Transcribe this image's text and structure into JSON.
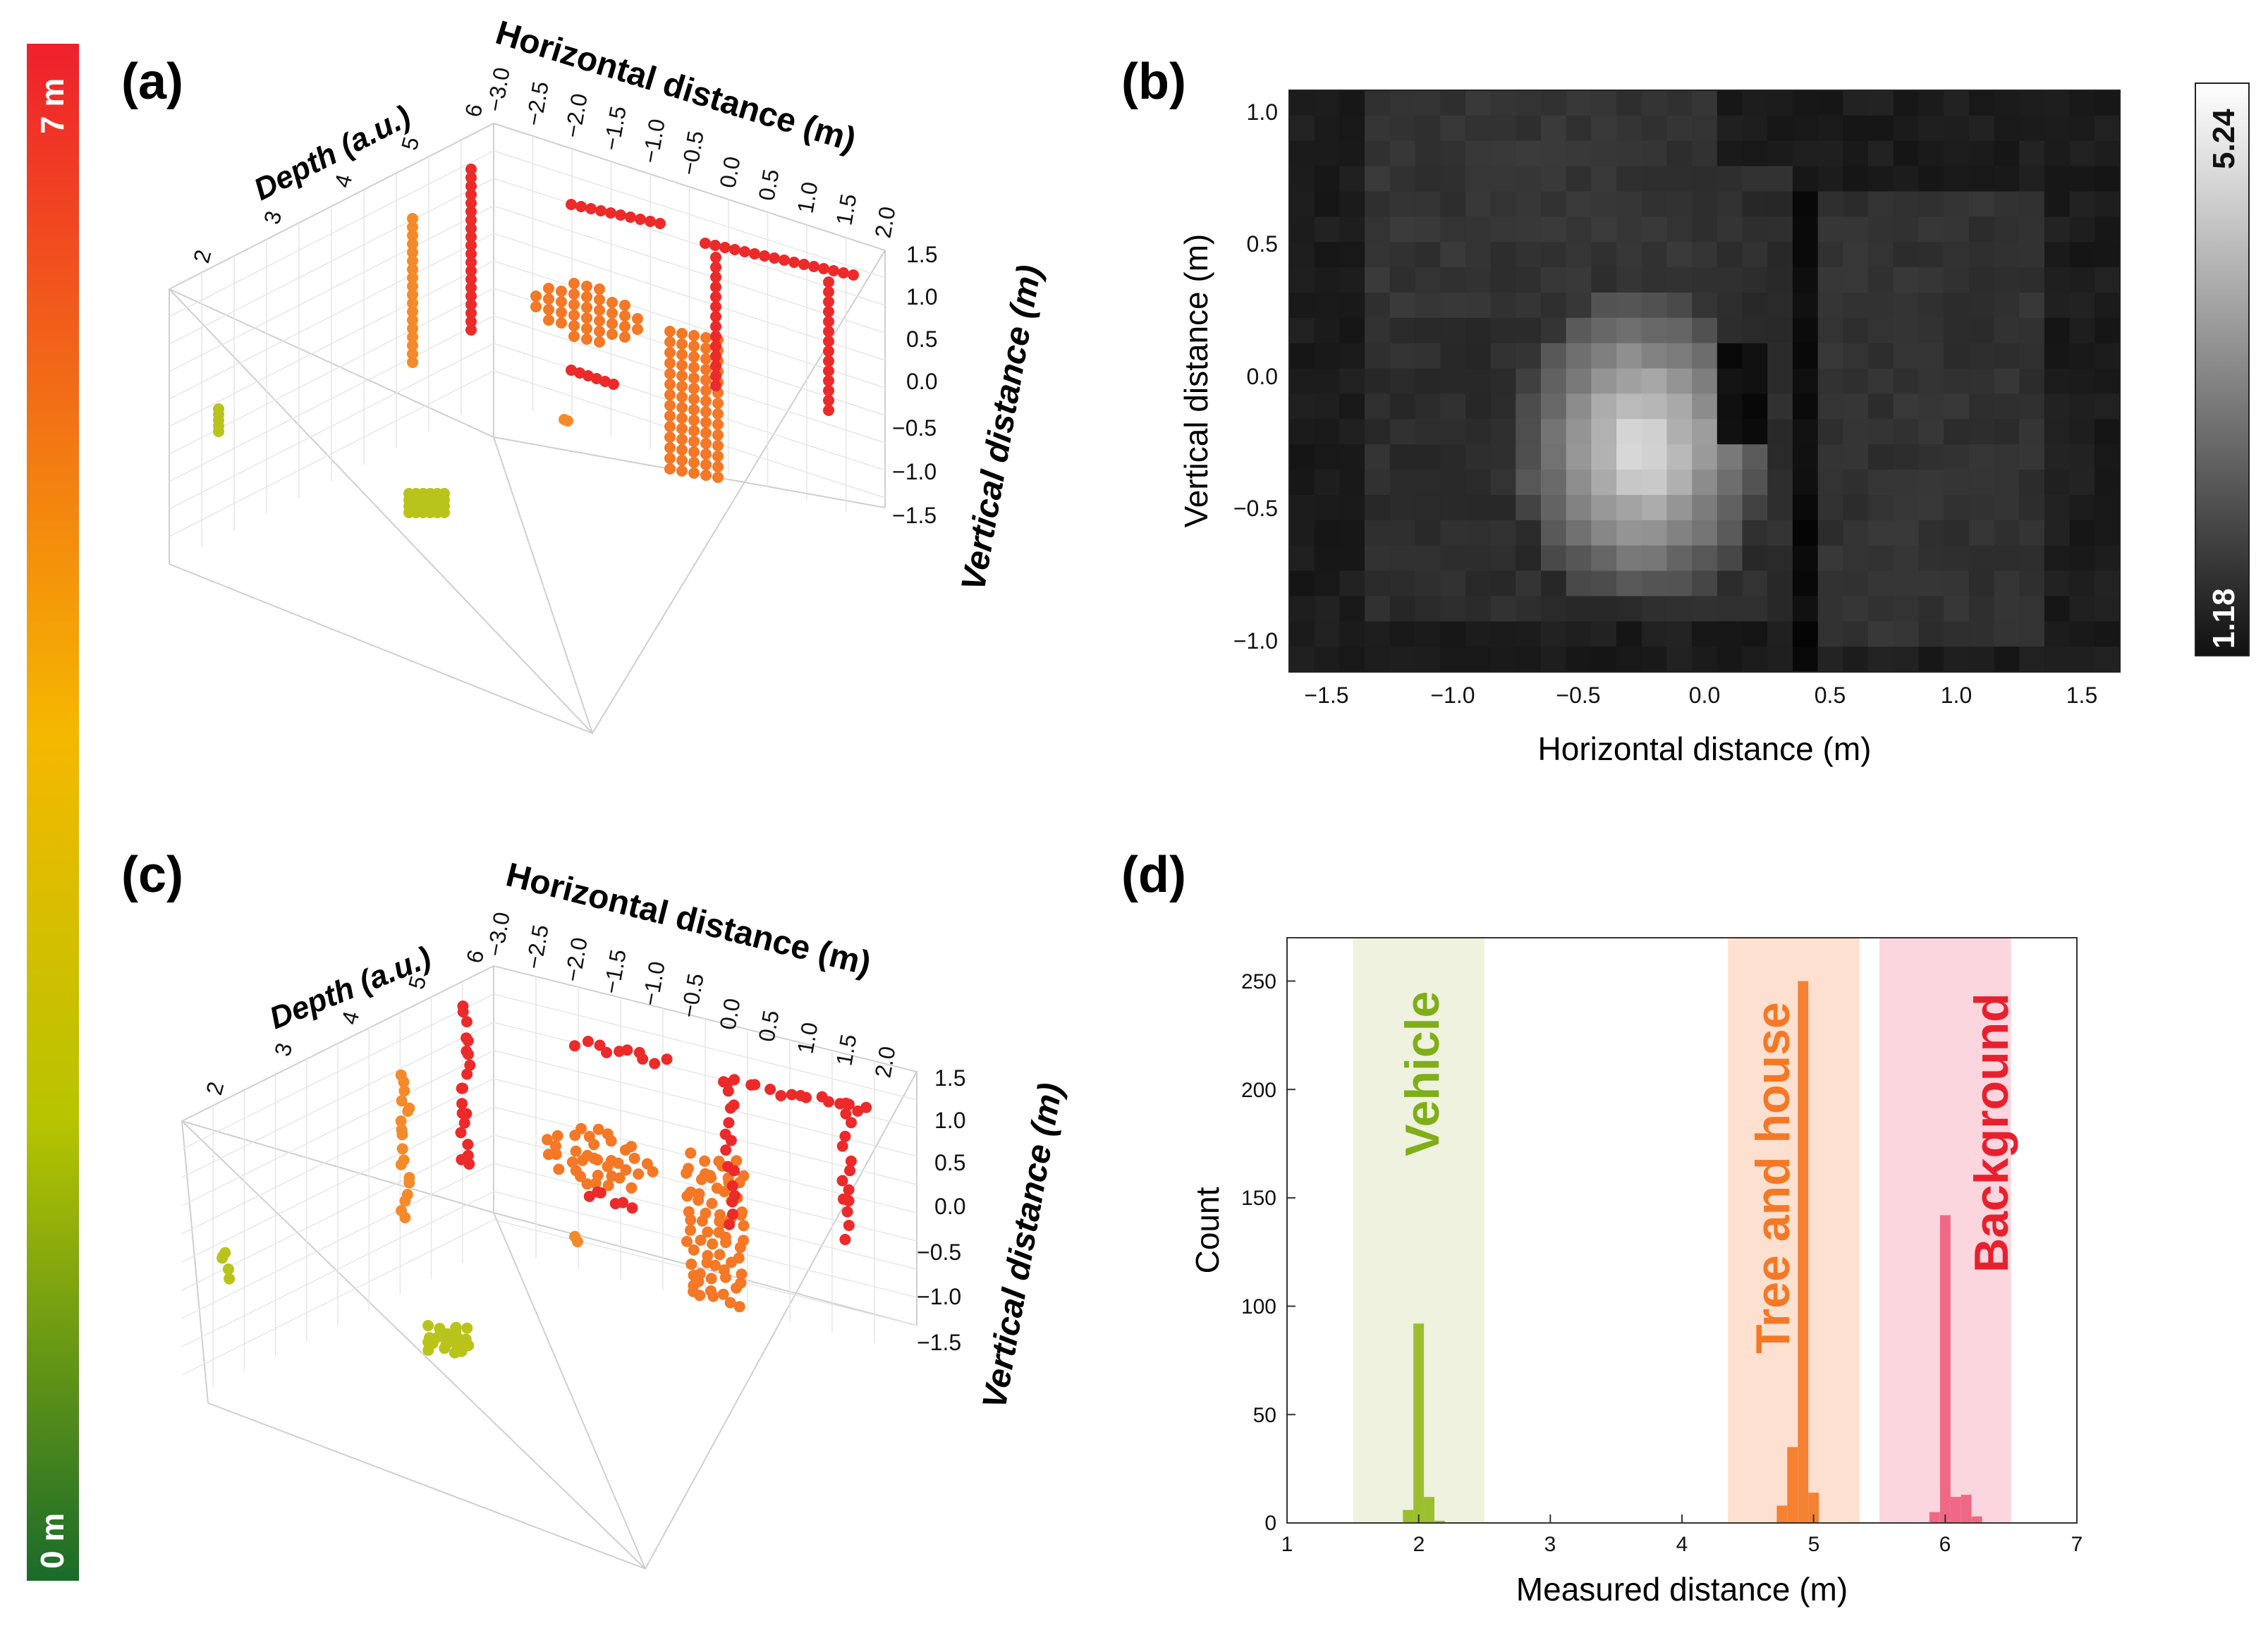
{
  "colorbar_depth": {
    "top_label": "7 m",
    "bottom_label": "0 m",
    "color_top": "#f0202c",
    "color_mid": "#f5b800",
    "color_low": "#b7c400",
    "color_bottom": "#1a6b2a"
  },
  "colorbar_intensity": {
    "top_label": "5.24",
    "bottom_label": "1.18",
    "color_top": "#ffffff",
    "color_bottom": "#111111"
  },
  "colors": {
    "vehicle": "#95bb1e",
    "tree_house": "#f47826",
    "background": "#ec2a2a",
    "olive": "#b8c41a"
  },
  "chart_data": [
    {
      "panel": "(a)",
      "type": "scatter",
      "title": "",
      "xlabel": "Horizontal distance (m)",
      "ylabel": "Vertical distance (m)",
      "zlabel": "Depth (a.u.)",
      "x_ticks": [
        "−3.0",
        "−2.5",
        "−2.0",
        "−1.5",
        "−1.0",
        "−0.5",
        "0.0",
        "0.5",
        "1.0",
        "1.5",
        "2.0"
      ],
      "y_ticks": [
        "1.5",
        "1.0",
        "0.5",
        "0.0",
        "−0.5",
        "−1.0",
        "−1.5"
      ],
      "z_ticks": [
        "2",
        "3",
        "4",
        "5",
        "6"
      ],
      "xlim": [
        -3.0,
        2.0
      ],
      "ylim": [
        -1.5,
        1.5
      ],
      "zlim": [
        2,
        6
      ],
      "series": [
        {
          "name": "Vehicle",
          "depth": 2,
          "points": [
            [
              -2.9,
              -0.1
            ],
            [
              -2.9,
              -0.2
            ],
            [
              -2.8,
              -0.1
            ],
            [
              -2.8,
              -0.2
            ],
            [
              -1.0,
              -1.4
            ],
            [
              -0.9,
              -1.4
            ],
            [
              -0.8,
              -1.4
            ]
          ]
        },
        {
          "name": "Tree and house",
          "depth": 5,
          "points": [
            [
              -1.7,
              0.6
            ],
            [
              -1.5,
              0.8
            ],
            [
              -1.3,
              0.7
            ],
            [
              -1.1,
              0.5
            ],
            [
              -0.5,
              0.2
            ],
            [
              -0.4,
              -0.3
            ],
            [
              -0.3,
              -0.8
            ]
          ]
        },
        {
          "name": "Background",
          "depth": 6,
          "points": [
            [
              -1.5,
              1.3
            ],
            [
              -0.5,
              1.1
            ],
            [
              0.5,
              1.0
            ],
            [
              1.5,
              0.8
            ],
            [
              1.6,
              -0.5
            ]
          ]
        }
      ]
    },
    {
      "panel": "(b)",
      "type": "heatmap",
      "title": "",
      "xlabel": "Horizontal distance (m)",
      "ylabel": "Vertical distance (m)",
      "x_ticks": [
        "−1.5",
        "−1.0",
        "−0.5",
        "0.0",
        "0.5",
        "1.0",
        "1.5"
      ],
      "y_ticks": [
        "1.0",
        "0.5",
        "0.0",
        "−0.5",
        "−1.0"
      ],
      "xlim": [
        -1.65,
        1.65
      ],
      "ylim": [
        -1.1,
        1.1
      ],
      "value_range": [
        1.18,
        5.24
      ],
      "nx": 33,
      "ny": 23,
      "bright_region_center": [
        -0.25,
        -0.25
      ],
      "dark_vertical_line_x": 0.4
    },
    {
      "panel": "(c)",
      "type": "scatter",
      "title": "",
      "xlabel": "Horizontal distance (m)",
      "ylabel": "Vertical distance (m)",
      "zlabel": "Depth (a.u.)",
      "x_ticks": [
        "−3.0",
        "−2.5",
        "−2.0",
        "−1.5",
        "−1.0",
        "−0.5",
        "0.0",
        "0.5",
        "1.0",
        "1.5",
        "2.0"
      ],
      "y_ticks": [
        "1.5",
        "1.0",
        "0.5",
        "0.0",
        "−0.5",
        "−1.0",
        "−1.5"
      ],
      "z_ticks": [
        "2",
        "3",
        "4",
        "5",
        "6"
      ],
      "xlim": [
        -3.0,
        2.0
      ],
      "ylim": [
        -1.5,
        1.5
      ],
      "zlim": [
        2,
        6
      ]
    },
    {
      "panel": "(d)",
      "type": "bar",
      "title": "",
      "xlabel": "Measured distance (m)",
      "ylabel": "Count",
      "xlim": [
        1,
        7
      ],
      "ylim": [
        0,
        270
      ],
      "x_ticks": [
        "1",
        "2",
        "3",
        "4",
        "5",
        "6",
        "7"
      ],
      "y_ticks": [
        "0",
        "50",
        "100",
        "150",
        "200",
        "250"
      ],
      "bin_width": 0.08,
      "series": [
        {
          "name": "Vehicle",
          "bins": [
            1.92,
            2.0,
            2.08,
            2.16
          ],
          "values": [
            6,
            92,
            12,
            1
          ]
        },
        {
          "name": "Tree and house",
          "bins": [
            4.76,
            4.84,
            4.92,
            5.0,
            5.08
          ],
          "values": [
            8,
            35,
            250,
            14,
            0
          ]
        },
        {
          "name": "Background",
          "bins": [
            5.92,
            6.0,
            6.08,
            6.16,
            6.24
          ],
          "values": [
            5,
            142,
            12,
            13,
            3
          ]
        }
      ],
      "regions": [
        {
          "label": "Vehicle",
          "range": [
            1.5,
            2.5
          ]
        },
        {
          "label": "Tree and house",
          "range": [
            4.35,
            5.35
          ]
        },
        {
          "label": "Background",
          "range": [
            5.5,
            6.5
          ]
        }
      ]
    }
  ]
}
